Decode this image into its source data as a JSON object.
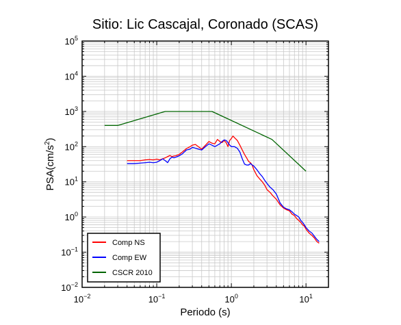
{
  "chart_data": {
    "type": "line",
    "title": "Sitio: Lic Cascajal, Coronado (SCAS)",
    "xlabel": "Periodo (s)",
    "ylabel_main": "PSA(cm/s",
    "ylabel_sup": "2",
    "ylabel_close": ")",
    "x_scale": "log",
    "y_scale": "log",
    "xlim": [
      0.01,
      20
    ],
    "ylim": [
      0.01,
      100000
    ],
    "grid": true,
    "legend_position": "bottom-left",
    "x_ticks": [
      {
        "value": 0.01,
        "base": "10",
        "exp": "−2"
      },
      {
        "value": 0.1,
        "base": "10",
        "exp": "−1"
      },
      {
        "value": 1,
        "base": "10",
        "exp": "0"
      },
      {
        "value": 10,
        "base": "10",
        "exp": "1"
      }
    ],
    "y_ticks": [
      {
        "value": 0.01,
        "base": "10",
        "exp": "−2"
      },
      {
        "value": 0.1,
        "base": "10",
        "exp": "−1"
      },
      {
        "value": 1,
        "base": "10",
        "exp": "0"
      },
      {
        "value": 10,
        "base": "10",
        "exp": "1"
      },
      {
        "value": 100,
        "base": "10",
        "exp": "2"
      },
      {
        "value": 1000,
        "base": "10",
        "exp": "3"
      },
      {
        "value": 10000,
        "base": "10",
        "exp": "4"
      },
      {
        "value": 100000,
        "base": "10",
        "exp": "5"
      }
    ],
    "series": [
      {
        "name": "Comp NS",
        "color": "#ff0000",
        "points": [
          [
            0.04,
            40
          ],
          [
            0.05,
            40
          ],
          [
            0.06,
            40
          ],
          [
            0.07,
            42
          ],
          [
            0.08,
            43
          ],
          [
            0.09,
            42
          ],
          [
            0.1,
            44
          ],
          [
            0.11,
            42
          ],
          [
            0.12,
            45
          ],
          [
            0.13,
            48
          ],
          [
            0.14,
            52
          ],
          [
            0.15,
            56
          ],
          [
            0.16,
            52
          ],
          [
            0.17,
            54
          ],
          [
            0.18,
            55
          ],
          [
            0.2,
            60
          ],
          [
            0.22,
            70
          ],
          [
            0.25,
            88
          ],
          [
            0.28,
            100
          ],
          [
            0.3,
            110
          ],
          [
            0.33,
            115
          ],
          [
            0.36,
            100
          ],
          [
            0.4,
            85
          ],
          [
            0.45,
            110
          ],
          [
            0.5,
            140
          ],
          [
            0.55,
            125
          ],
          [
            0.6,
            120
          ],
          [
            0.65,
            160
          ],
          [
            0.7,
            140
          ],
          [
            0.75,
            130
          ],
          [
            0.8,
            150
          ],
          [
            0.85,
            130
          ],
          [
            0.9,
            100
          ],
          [
            0.95,
            150
          ],
          [
            1.0,
            170
          ],
          [
            1.05,
            200
          ],
          [
            1.1,
            180
          ],
          [
            1.2,
            150
          ],
          [
            1.3,
            110
          ],
          [
            1.4,
            80
          ],
          [
            1.5,
            60
          ],
          [
            1.6,
            48
          ],
          [
            1.7,
            38
          ],
          [
            1.8,
            35
          ],
          [
            1.9,
            30
          ],
          [
            2.0,
            22
          ],
          [
            2.2,
            15
          ],
          [
            2.4,
            12
          ],
          [
            2.6,
            10
          ],
          [
            2.8,
            8
          ],
          [
            3.0,
            6
          ],
          [
            3.3,
            5
          ],
          [
            3.6,
            4
          ],
          [
            4.0,
            3.2
          ],
          [
            4.5,
            2.2
          ],
          [
            5.0,
            1.8
          ],
          [
            5.5,
            1.6
          ],
          [
            6.0,
            1.5
          ],
          [
            6.5,
            1.2
          ],
          [
            7.0,
            1.1
          ],
          [
            7.5,
            0.9
          ],
          [
            8.0,
            0.8
          ],
          [
            8.5,
            0.7
          ],
          [
            9.0,
            0.6
          ],
          [
            9.5,
            0.55
          ],
          [
            10.0,
            0.45
          ],
          [
            11.0,
            0.35
          ],
          [
            12.0,
            0.3
          ],
          [
            13.0,
            0.25
          ],
          [
            14.0,
            0.2
          ],
          [
            15.0,
            0.18
          ]
        ]
      },
      {
        "name": "Comp EW",
        "color": "#0000ff",
        "points": [
          [
            0.04,
            33
          ],
          [
            0.05,
            33
          ],
          [
            0.06,
            34
          ],
          [
            0.07,
            35
          ],
          [
            0.08,
            36
          ],
          [
            0.09,
            35
          ],
          [
            0.1,
            36
          ],
          [
            0.11,
            40
          ],
          [
            0.12,
            45
          ],
          [
            0.13,
            40
          ],
          [
            0.14,
            35
          ],
          [
            0.15,
            45
          ],
          [
            0.16,
            50
          ],
          [
            0.17,
            48
          ],
          [
            0.18,
            50
          ],
          [
            0.2,
            55
          ],
          [
            0.22,
            62
          ],
          [
            0.25,
            80
          ],
          [
            0.28,
            85
          ],
          [
            0.3,
            95
          ],
          [
            0.33,
            90
          ],
          [
            0.36,
            85
          ],
          [
            0.4,
            80
          ],
          [
            0.45,
            100
          ],
          [
            0.5,
            120
          ],
          [
            0.55,
            110
          ],
          [
            0.6,
            100
          ],
          [
            0.65,
            110
          ],
          [
            0.7,
            120
          ],
          [
            0.75,
            140
          ],
          [
            0.8,
            155
          ],
          [
            0.85,
            150
          ],
          [
            0.9,
            130
          ],
          [
            0.95,
            110
          ],
          [
            1.0,
            100
          ],
          [
            1.1,
            100
          ],
          [
            1.2,
            90
          ],
          [
            1.3,
            70
          ],
          [
            1.4,
            45
          ],
          [
            1.5,
            32
          ],
          [
            1.6,
            30
          ],
          [
            1.7,
            30
          ],
          [
            1.8,
            33
          ],
          [
            1.9,
            30
          ],
          [
            2.0,
            28
          ],
          [
            2.2,
            22
          ],
          [
            2.4,
            17
          ],
          [
            2.6,
            14
          ],
          [
            2.8,
            11
          ],
          [
            3.0,
            9
          ],
          [
            3.3,
            7
          ],
          [
            3.6,
            6
          ],
          [
            4.0,
            4.5
          ],
          [
            4.5,
            2.5
          ],
          [
            5.0,
            1.9
          ],
          [
            5.5,
            1.7
          ],
          [
            6.0,
            1.6
          ],
          [
            6.5,
            1.4
          ],
          [
            7.0,
            1.2
          ],
          [
            7.5,
            1.1
          ],
          [
            8.0,
            1.0
          ],
          [
            8.5,
            0.8
          ],
          [
            9.0,
            0.7
          ],
          [
            9.5,
            0.6
          ],
          [
            10.0,
            0.5
          ],
          [
            11.0,
            0.4
          ],
          [
            12.0,
            0.35
          ],
          [
            13.0,
            0.28
          ],
          [
            14.0,
            0.23
          ],
          [
            15.0,
            0.2
          ]
        ]
      },
      {
        "name": "CSCR 2010",
        "color": "#006400",
        "points": [
          [
            0.02,
            400
          ],
          [
            0.03,
            400
          ],
          [
            0.13,
            1000
          ],
          [
            0.55,
            1000
          ],
          [
            3.5,
            160
          ],
          [
            10,
            20
          ]
        ]
      }
    ]
  }
}
